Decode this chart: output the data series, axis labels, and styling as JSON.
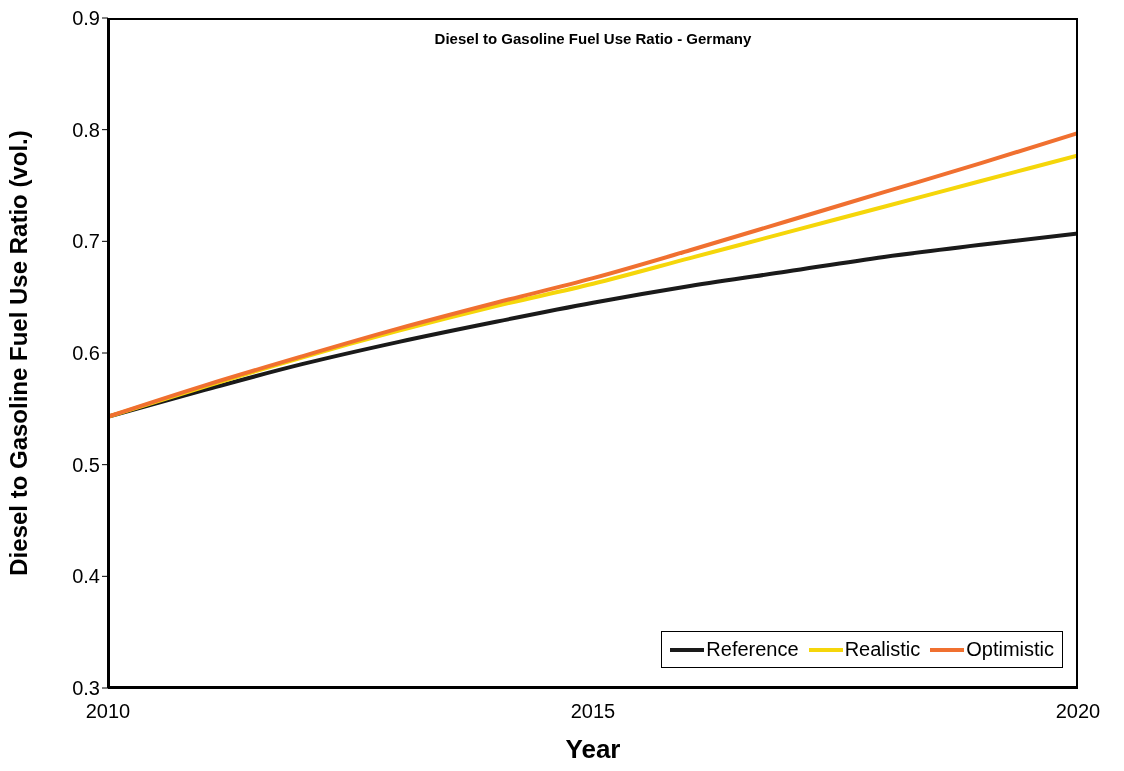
{
  "chart_data": {
    "type": "line",
    "title": "Diesel to Gasoline Fuel Use Ratio - Germany",
    "xlabel": "Year",
    "ylabel": "Diesel to Gasoline Fuel Use Ratio (vol.)",
    "x": [
      2010,
      2011,
      2012,
      2013,
      2014,
      2015,
      2016,
      2017,
      2018,
      2019,
      2020
    ],
    "series": [
      {
        "name": "Reference",
        "color": "#1a1a1a",
        "values": [
          0.543,
          0.567,
          0.59,
          0.61,
          0.628,
          0.645,
          0.66,
          0.673,
          0.686,
          0.697,
          0.707
        ]
      },
      {
        "name": "Realistic",
        "color": "#f5d60a",
        "values": [
          0.543,
          0.57,
          0.596,
          0.62,
          0.642,
          0.662,
          0.685,
          0.708,
          0.731,
          0.754,
          0.777
        ]
      },
      {
        "name": "Optimistic",
        "color": "#f07030",
        "values": [
          0.543,
          0.571,
          0.597,
          0.622,
          0.645,
          0.667,
          0.692,
          0.718,
          0.744,
          0.77,
          0.797
        ]
      }
    ],
    "xlim": [
      2010,
      2020
    ],
    "xticks": [
      2010,
      2015,
      2020
    ],
    "ylim": [
      0.3,
      0.9
    ],
    "yticks": [
      0.3,
      0.4,
      0.5,
      0.6,
      0.7,
      0.8,
      0.9
    ],
    "grid": false,
    "legend": "bottom right"
  }
}
